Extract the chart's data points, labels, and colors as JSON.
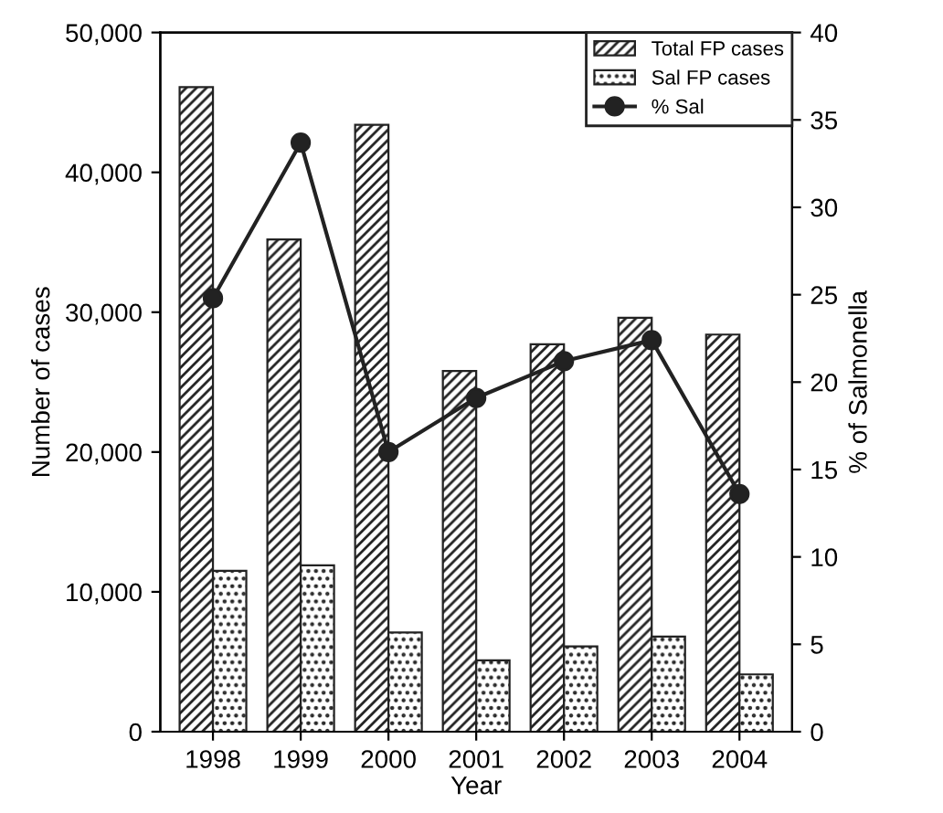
{
  "chart_data": {
    "type": "bar",
    "xlabel": "Year",
    "ylabel": "Number of cases",
    "y2label": "% of Salmonella",
    "categories": [
      "1998",
      "1999",
      "2000",
      "2001",
      "2002",
      "2003",
      "2004"
    ],
    "series": [
      {
        "name": "Total FP cases",
        "color": "#222222",
        "values": [
          46100,
          35200,
          43400,
          25800,
          27700,
          29600,
          28400
        ]
      },
      {
        "name": "Sal FP cases",
        "color": "#222222",
        "values": [
          11500,
          11900,
          7100,
          5100,
          6100,
          6800,
          4100
        ]
      },
      {
        "name": "% Sal",
        "type": "line",
        "axis": "y2",
        "color": "#222222",
        "marker": "circle",
        "line_style": "solid",
        "values": [
          24.8,
          33.7,
          16.0,
          19.1,
          21.2,
          22.4,
          13.6
        ]
      }
    ],
    "ylim": [
      0,
      50000
    ],
    "yticks": [
      {
        "value": 0,
        "label": "0"
      },
      {
        "value": 10000,
        "label": "10,000"
      },
      {
        "value": 20000,
        "label": "20,000"
      },
      {
        "value": 30000,
        "label": "30,000"
      },
      {
        "value": 40000,
        "label": "40,000"
      },
      {
        "value": 50000,
        "label": "50,000"
      }
    ],
    "y2lim": [
      0,
      40
    ],
    "y2ticks": [
      0,
      5,
      10,
      15,
      20,
      25,
      30,
      35,
      40
    ],
    "legend": "top right",
    "grid": false
  }
}
